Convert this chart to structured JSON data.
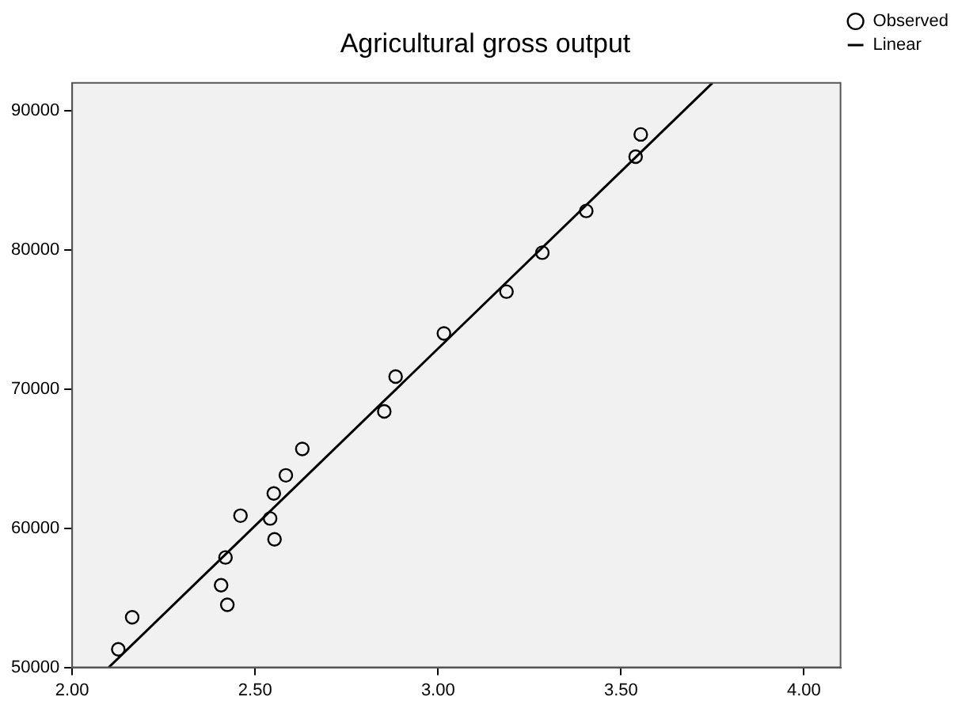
{
  "chart_data": {
    "type": "scatter",
    "title": "Agricultural gross output",
    "xlim": [
      2.0,
      4.1
    ],
    "xticks": [
      {
        "value": 2,
        "label": "2.00"
      },
      {
        "value": 2.5,
        "label": "2.50"
      },
      {
        "value": 3,
        "label": "3.00"
      },
      {
        "value": 3.5,
        "label": "3.50"
      },
      {
        "value": 4,
        "label": "4.00"
      }
    ],
    "ylim": [
      50000,
      92000
    ],
    "yticks": [
      50000,
      60000,
      70000,
      80000,
      90000
    ],
    "grid": false,
    "legend": "right",
    "series": [
      {
        "name": "Observed",
        "type": "scatter",
        "marker": "circle",
        "color": "#000000",
        "x": [
          2.126,
          2.164,
          2.407,
          2.424,
          2.419,
          2.46,
          2.541,
          2.553,
          2.551,
          2.584,
          2.629,
          2.853,
          2.884,
          3.016,
          3.187,
          3.285,
          3.405,
          3.54,
          3.554
        ],
        "values": [
          51300,
          53600,
          55900,
          54500,
          57900,
          60900,
          60700,
          59200,
          62500,
          63800,
          65700,
          68400,
          70900,
          74000,
          77000,
          79800,
          82800,
          86700,
          88300
        ]
      },
      {
        "name": "Linear",
        "type": "line",
        "marker": "none",
        "color": "#000000",
        "x": [
          2.1,
          3.75
        ],
        "values": [
          50000,
          92000
        ]
      }
    ]
  }
}
